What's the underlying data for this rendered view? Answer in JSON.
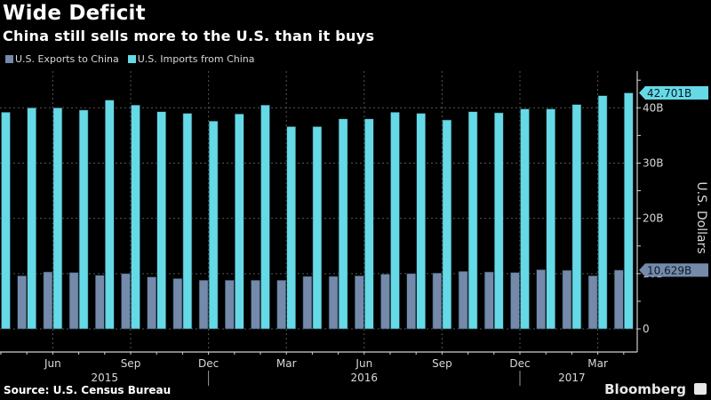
{
  "header": {
    "title": "Wide Deficit",
    "subtitle": "China still sells more to the U.S. than it buys"
  },
  "footer": {
    "source": "Source: U.S. Census Bureau",
    "brand": "Bloomberg",
    "brand_icon": "bloomberg-chart-icon"
  },
  "colors": {
    "exports": "#7589ab",
    "imports": "#66d9e6",
    "background": "#000000"
  },
  "chart_data": {
    "type": "bar",
    "title": "Wide Deficit",
    "subtitle": "China still sells more to the U.S. than it buys",
    "xlabel": "",
    "ylabel": "U.S. Dollars",
    "ylim": [
      0,
      45
    ],
    "y_unit": "B",
    "yticks": [
      0,
      10,
      20,
      30,
      40
    ],
    "ytick_labels": [
      "0",
      "10B",
      "20B",
      "30B",
      "40B"
    ],
    "grid": true,
    "legend_position": "top-left",
    "categories": [
      "2015-04",
      "2015-05",
      "2015-06",
      "2015-07",
      "2015-08",
      "2015-09",
      "2015-10",
      "2015-11",
      "2015-12",
      "2016-01",
      "2016-02",
      "2016-03",
      "2016-04",
      "2016-05",
      "2016-06",
      "2016-07",
      "2016-08",
      "2016-09",
      "2016-10",
      "2016-11",
      "2016-12",
      "2017-01",
      "2017-02",
      "2017-03",
      "2017-04"
    ],
    "xtick_labels": [
      {
        "category": "2015-06",
        "label": "Jun"
      },
      {
        "category": "2015-09",
        "label": "Sep"
      },
      {
        "category": "2015-12",
        "label": "Dec"
      },
      {
        "category": "2016-03",
        "label": "Mar"
      },
      {
        "category": "2016-06",
        "label": "Jun"
      },
      {
        "category": "2016-09",
        "label": "Sep"
      },
      {
        "category": "2016-12",
        "label": "Dec"
      },
      {
        "category": "2017-03",
        "label": "Mar"
      }
    ],
    "year_labels": [
      {
        "category": "2015-08",
        "label": "2015"
      },
      {
        "category": "2016-06",
        "label": "2016"
      },
      {
        "category": "2017-02",
        "label": "2017"
      }
    ],
    "year_dividers": [
      "2015-12",
      "2016-12"
    ],
    "series": [
      {
        "name": "U.S. Exports to China",
        "color": "#7589ab",
        "values": [
          null,
          9.6,
          10.3,
          10.2,
          9.7,
          10.0,
          9.4,
          9.1,
          8.8,
          8.8,
          8.8,
          8.8,
          9.5,
          9.5,
          9.6,
          9.9,
          10.0,
          10.1,
          10.4,
          10.3,
          10.2,
          10.7,
          10.6,
          9.6,
          10.629
        ],
        "last_value_label": "10.629B"
      },
      {
        "name": "U.S. Imports from China",
        "color": "#66d9e6",
        "values": [
          39.2,
          40.0,
          40.0,
          39.6,
          41.4,
          40.5,
          39.3,
          39.0,
          37.6,
          38.9,
          40.5,
          36.6,
          36.6,
          38.0,
          38.0,
          39.2,
          39.0,
          37.8,
          39.3,
          39.1,
          39.8,
          39.8,
          40.6,
          42.2,
          42.701
        ],
        "last_value_label": "42.701B"
      }
    ]
  }
}
